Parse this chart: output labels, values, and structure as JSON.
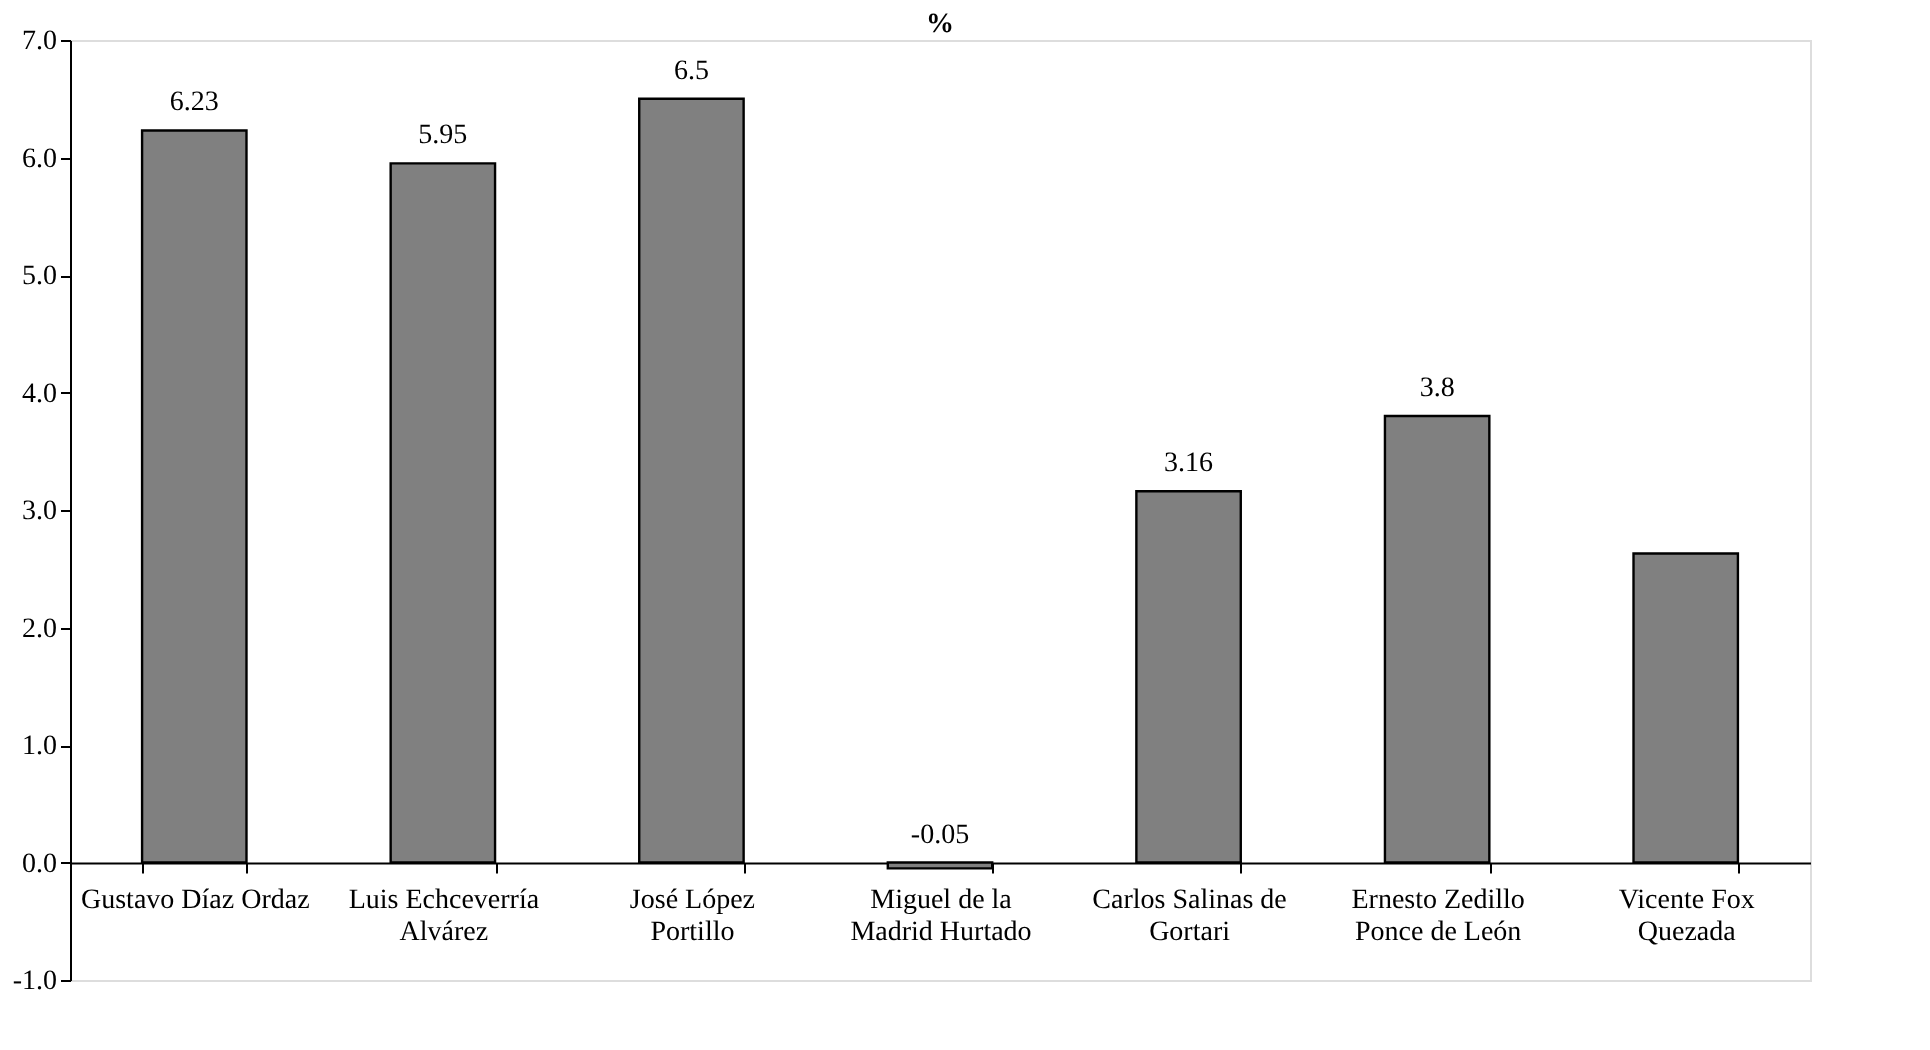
{
  "chart_data": {
    "type": "bar",
    "title": "%",
    "categories": [
      "Gustavo Díaz Ordaz",
      "Luis Echceverría Alvárez",
      "José López Portillo",
      "Miguel de la Madrid Hurtado",
      "Carlos Salinas de Gortari",
      "Ernesto Zedillo Ponce de León",
      "Vicente Fox Quezada"
    ],
    "values": [
      6.23,
      5.95,
      6.5,
      -0.05,
      3.16,
      3.8,
      2.63
    ],
    "value_labels": [
      "6.23",
      "5.95",
      "6.5",
      "-0.05",
      "3.16",
      "3.8",
      null
    ],
    "color": "#808080",
    "ylim": [
      -1.0,
      7.0
    ],
    "yticks": [
      {
        "value": -1,
        "label": "-1.0"
      },
      {
        "value": 0,
        "label": "0.0"
      },
      {
        "value": 1,
        "label": "1.0"
      },
      {
        "value": 2,
        "label": "2.0"
      },
      {
        "value": 3,
        "label": "3.0"
      },
      {
        "value": 4,
        "label": "4.0"
      },
      {
        "value": 5,
        "label": "5.0"
      },
      {
        "value": 6,
        "label": "6.0"
      },
      {
        "value": 7,
        "label": "7.0"
      }
    ],
    "grid": false
  }
}
